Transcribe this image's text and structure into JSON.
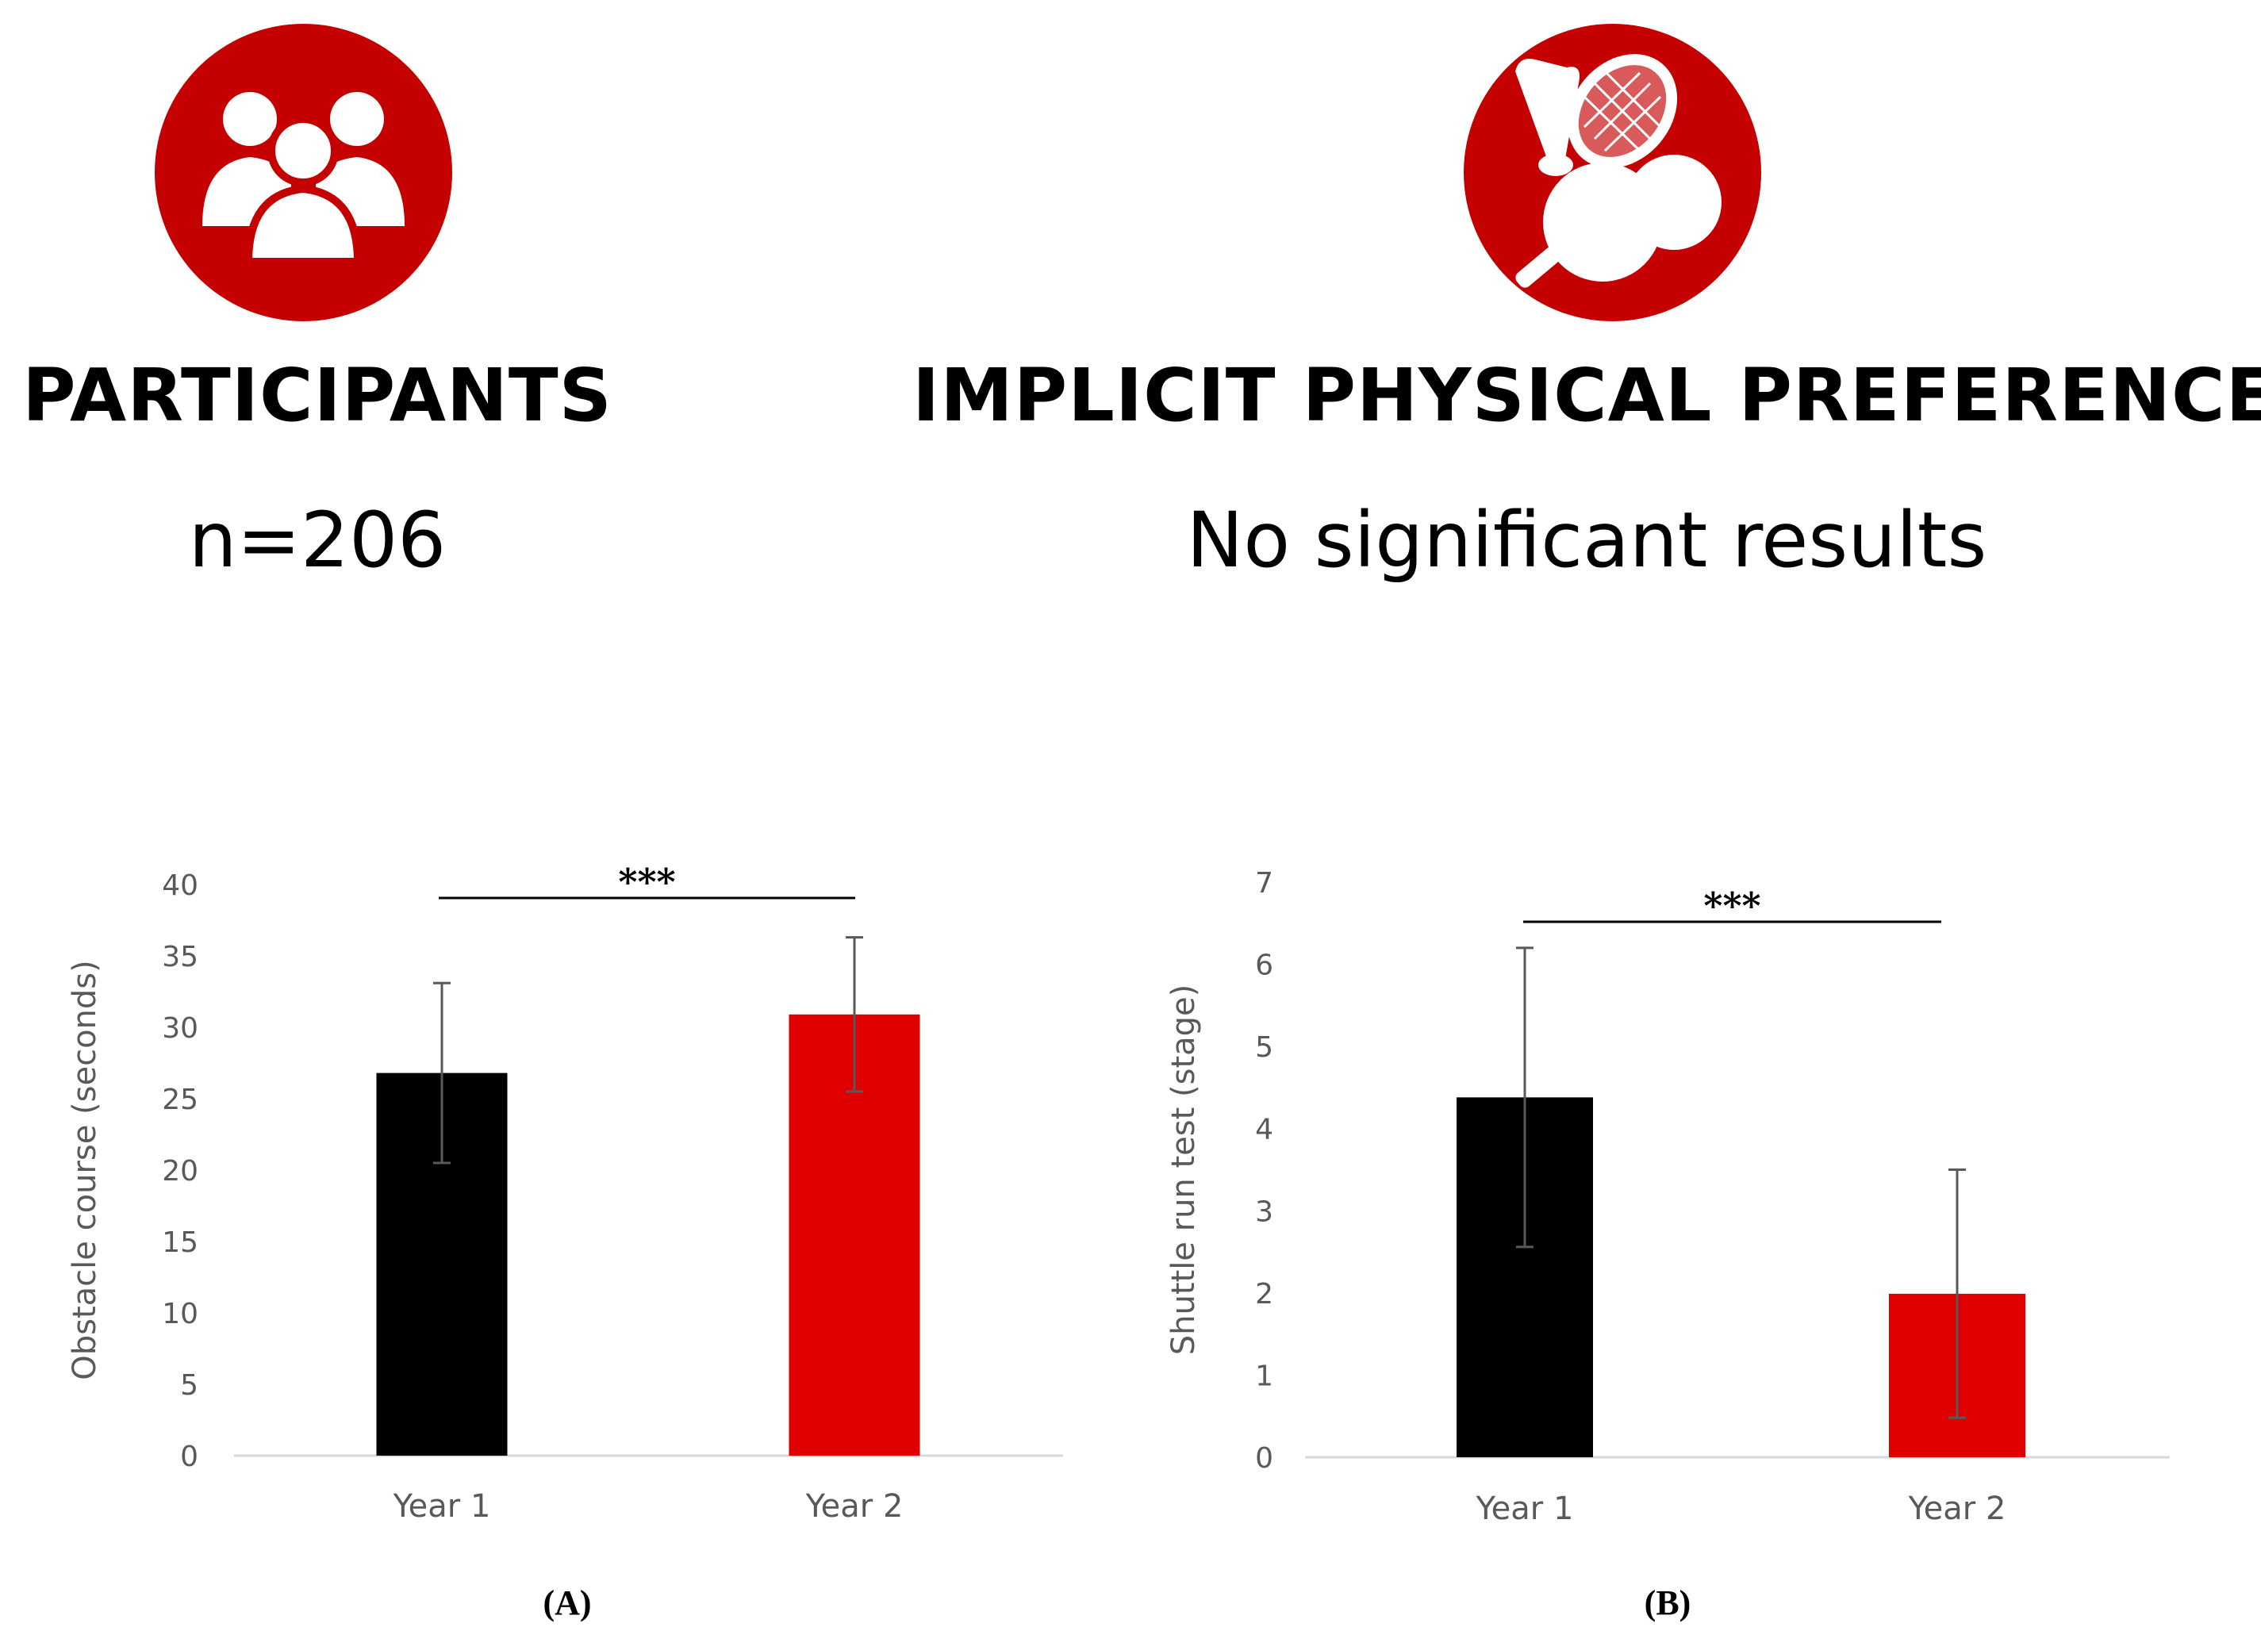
{
  "infographic": {
    "icon_color": "#c50000",
    "participants": {
      "icon": "group-of-people-icon",
      "heading": "PARTICIPANTS",
      "value": "n=206"
    },
    "implicit_preferences": {
      "icon": "sports-equipment-icon",
      "heading": "IMPLICIT PHYSICAL PREFERENCES",
      "value": "No significant results"
    }
  },
  "chart_data": [
    {
      "type": "bar",
      "panel_label": "(A)",
      "categories": [
        "Year 1",
        "Year 2"
      ],
      "values": [
        26.8,
        30.9
      ],
      "errors": [
        6.3,
        5.4
      ],
      "colors": [
        "#000000",
        "#e00000"
      ],
      "ylabel": "Obstacle course (seconds)",
      "ylim": [
        0,
        40
      ],
      "yticks": [
        "0",
        "5",
        "10",
        "15",
        "20",
        "25",
        "30",
        "35",
        "40"
      ],
      "significance": "***",
      "grid": false
    },
    {
      "type": "bar",
      "panel_label": "(B)",
      "categories": [
        "Year 1",
        "Year 2"
      ],
      "values": [
        4.38,
        1.99
      ],
      "errors": [
        1.82,
        1.51
      ],
      "colors": [
        "#000000",
        "#e00000"
      ],
      "ylabel": "Shuttle run test (stage)",
      "ylim": [
        0,
        7
      ],
      "yticks": [
        "0",
        "1",
        "2",
        "3",
        "4",
        "5",
        "6",
        "7"
      ],
      "significance": "***",
      "grid": false
    }
  ]
}
